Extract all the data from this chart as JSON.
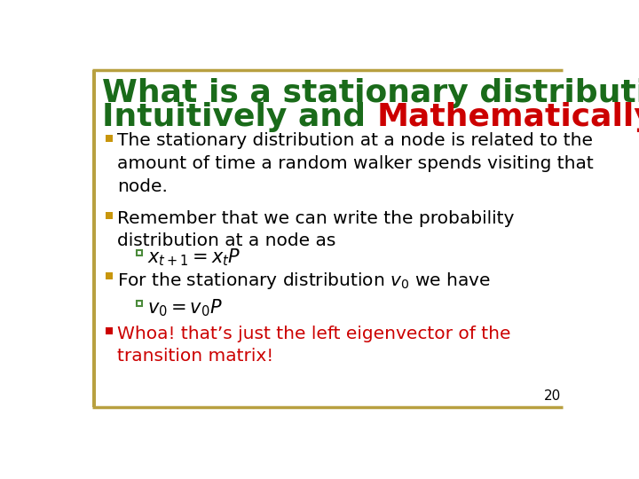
{
  "background_color": "#ffffff",
  "border_top_color": "#B8A040",
  "border_bottom_color": "#B8A040",
  "left_bar_color": "#B8A040",
  "title_line1": "What is a stationary distribution?",
  "title_line2_prefix": "Intuitively and ",
  "title_line2_highlight": "Mathematically",
  "title_color": "#1A6B1A",
  "title_highlight_color": "#CC0000",
  "title_fontsize": 26,
  "bullet_square_color": "#C8960C",
  "sub_bullet_color": "#4A8A3A",
  "bullet_fontsize": 14.5,
  "sub_bullet_fontsize": 15,
  "page_number": "20",
  "page_number_fontsize": 11
}
